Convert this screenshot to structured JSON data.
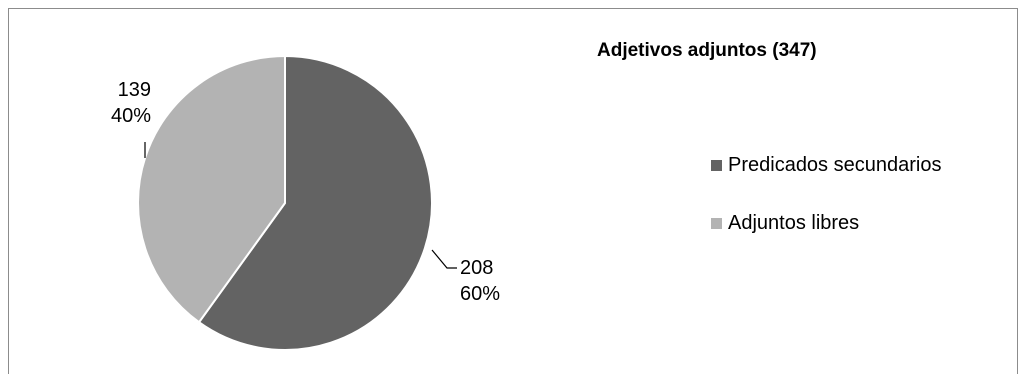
{
  "chart_data": {
    "type": "pie",
    "title": "Adjetivos adjuntos (347)",
    "start_angle_deg": 0,
    "direction": "clockwise",
    "slices": [
      {
        "label": "Predicados secundarios",
        "value": 208,
        "percent": "60%",
        "color": "#636363"
      },
      {
        "label": "Adjuntos libres",
        "value": 139,
        "percent": "40%",
        "color": "#b3b3b3"
      }
    ],
    "legend_position": "right"
  }
}
